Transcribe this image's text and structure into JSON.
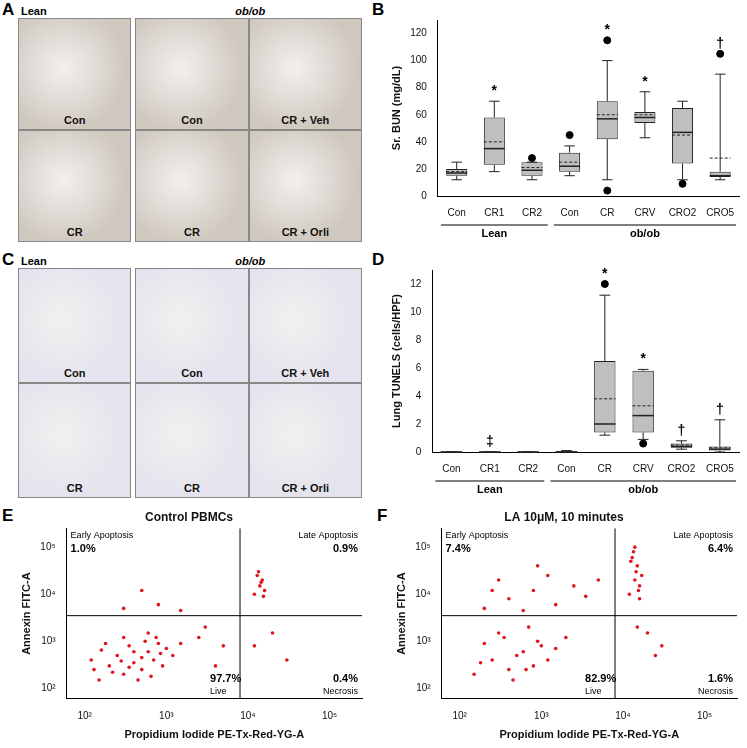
{
  "micrographs": [
    {
      "panel": "A",
      "color": "#cfc8bf",
      "groups": [
        {
          "label": "Lean",
          "cells": [
            "Con",
            "CR"
          ]
        },
        {
          "label": "ob/ob",
          "cells": [
            "Con",
            "CR + Veh",
            "CR",
            "CR + Orli"
          ]
        }
      ]
    },
    {
      "panel": "C",
      "color": "#e4e3ee",
      "groups": [
        {
          "label": "Lean",
          "cells": [
            "Con",
            "CR"
          ]
        },
        {
          "label": "ob/ob",
          "cells": [
            "Con",
            "CR + Veh",
            "CR",
            "CR + Orli"
          ]
        }
      ]
    }
  ],
  "chart_data": [
    {
      "panel": "B",
      "type": "box",
      "y_label": "Sr. BUN (mg/dL)",
      "color": "#bfbfbf",
      "grid": false,
      "categories": [
        "Con",
        "CR1",
        "CR2",
        "Con",
        "CR",
        "CRV",
        "CRO2",
        "CRO5"
      ],
      "groups": [
        {
          "label": "Lean",
          "count": 3
        },
        {
          "label": "ob/ob",
          "count": 5
        }
      ],
      "ylim": [
        0,
        130
      ],
      "yticks": [
        0,
        20,
        40,
        60,
        80,
        100,
        120
      ],
      "boxes": [
        {
          "min": 12,
          "q1": 15,
          "median": 17,
          "q3": 20,
          "max": 25,
          "mean": 18,
          "outliers": []
        },
        {
          "min": 18,
          "q1": 23,
          "median": 35,
          "q3": 58,
          "max": 70,
          "mean": 40,
          "outliers": []
        },
        {
          "min": 12,
          "q1": 15,
          "median": 19,
          "q3": 25,
          "max": 25,
          "mean": 21,
          "outliers": [
            28
          ]
        },
        {
          "min": 15,
          "q1": 18,
          "median": 22,
          "q3": 32,
          "max": 37,
          "mean": 25,
          "outliers": [
            45
          ]
        },
        {
          "min": 12,
          "q1": 42,
          "median": 57,
          "q3": 70,
          "max": 100,
          "mean": 60,
          "outliers": [
            115,
            4
          ]
        },
        {
          "min": 43,
          "q1": 54,
          "median": 58,
          "q3": 62,
          "max": 77,
          "mean": 60,
          "outliers": []
        },
        {
          "min": 12,
          "q1": 24,
          "median": 47,
          "q3": 65,
          "max": 70,
          "mean": 45,
          "outliers": [
            9
          ]
        },
        {
          "min": 12,
          "q1": 14,
          "median": 15,
          "q3": 18,
          "max": 90,
          "mean": 28,
          "outliers": [
            105
          ]
        }
      ],
      "annotations": [
        null,
        "*",
        null,
        null,
        "*",
        "*",
        null,
        "†"
      ]
    },
    {
      "panel": "D",
      "type": "box",
      "y_label": "Lung TUNELS (cells/HPF)",
      "color": "#bfbfbf",
      "grid": false,
      "categories": [
        "Con",
        "CR1",
        "CR2",
        "Con",
        "CR",
        "CRV",
        "CRO2",
        "CRO5"
      ],
      "groups": [
        {
          "label": "Lean",
          "count": 3
        },
        {
          "label": "ob/ob",
          "count": 5
        }
      ],
      "ylim": [
        0,
        13
      ],
      "yticks": [
        0,
        2,
        4,
        6,
        8,
        10,
        12
      ],
      "boxes": [
        {
          "min": 0,
          "q1": 0,
          "median": 0,
          "q3": 0,
          "max": 0,
          "mean": 0,
          "outliers": []
        },
        {
          "min": 0,
          "q1": 0,
          "median": 0,
          "q3": 0,
          "max": 0,
          "mean": 0,
          "outliers": []
        },
        {
          "min": 0,
          "q1": 0,
          "median": 0,
          "q3": 0,
          "max": 0,
          "mean": 0,
          "outliers": []
        },
        {
          "min": 0,
          "q1": 0,
          "median": 0,
          "q3": 0.05,
          "max": 0.1,
          "mean": 0.02,
          "outliers": []
        },
        {
          "min": 1.2,
          "q1": 1.4,
          "median": 2.0,
          "q3": 6.5,
          "max": 11.2,
          "mean": 3.8,
          "outliers": [
            12
          ]
        },
        {
          "min": 0.9,
          "q1": 1.4,
          "median": 2.6,
          "q3": 5.8,
          "max": 5.9,
          "mean": 3.3,
          "outliers": [
            0.6
          ]
        },
        {
          "min": 0.2,
          "q1": 0.3,
          "median": 0.4,
          "q3": 0.6,
          "max": 0.8,
          "mean": 0.5,
          "outliers": []
        },
        {
          "min": 0,
          "q1": 0.1,
          "median": 0.2,
          "q3": 0.4,
          "max": 2.3,
          "mean": 0.3,
          "outliers": []
        }
      ],
      "annotations": [
        null,
        "‡",
        null,
        null,
        "*",
        "*",
        "†",
        "†"
      ]
    },
    {
      "panel": "E",
      "type": "scatter",
      "title": "Control PBMCs",
      "color": "#e0141e",
      "grid": false,
      "log": true,
      "x_label": "Propidium Iodide PE-Tx-Red-YG-A",
      "y_label": "Annexin FITC-A",
      "xlim": [
        60,
        250000
      ],
      "ylim": [
        60,
        250000
      ],
      "xticks": [
        {
          "value": 100,
          "label": "10²"
        },
        {
          "value": 1000,
          "label": "10³"
        },
        {
          "value": 10000,
          "label": "10⁴"
        },
        {
          "value": 100000,
          "label": "10⁵"
        }
      ],
      "yticks": [
        {
          "value": 100,
          "label": "10²"
        },
        {
          "value": 1000,
          "label": "10³"
        },
        {
          "value": 10000,
          "label": "10⁴"
        },
        {
          "value": 100000,
          "label": "10⁵"
        }
      ],
      "gates": {
        "x": 8000,
        "y": 3500
      },
      "quadrants": [
        {
          "name": "Early Apoptosis",
          "label": "1.0%"
        },
        {
          "name": "Late Apoptosis",
          "label": "0.9%"
        },
        {
          "name": "Live",
          "label": "97.7%"
        },
        {
          "name": "Necrosis",
          "label": "0.4%"
        }
      ],
      "x": [
        150,
        200,
        300,
        250,
        400,
        500,
        350,
        600,
        180,
        700,
        450,
        120,
        800,
        300,
        550,
        900,
        220,
        650,
        1000,
        400,
        160,
        750,
        1200,
        280,
        500,
        130,
        850,
        350,
        1500,
        600,
        300,
        800,
        1500,
        500,
        12000,
        14000,
        15000,
        13000,
        16000,
        14500,
        13500,
        15500,
        12000,
        20000,
        30000,
        3000,
        5000,
        2500,
        4000
      ],
      "values": [
        150,
        300,
        200,
        500,
        350,
        250,
        800,
        600,
        900,
        400,
        150,
        400,
        900,
        1200,
        1000,
        300,
        220,
        180,
        700,
        600,
        650,
        1200,
        500,
        380,
        450,
        250,
        550,
        280,
        900,
        1500,
        5000,
        6000,
        4500,
        12000,
        10000,
        15000,
        20000,
        25000,
        12000,
        18000,
        30000,
        9000,
        800,
        1500,
        400,
        2000,
        800,
        1200,
        300
      ]
    },
    {
      "panel": "F",
      "type": "scatter",
      "title": "LA 10μM, 10 minutes",
      "color": "#e0141e",
      "grid": false,
      "log": true,
      "x_label": "Propidium Iodide PE-Tx-Red-YG-A",
      "y_label": "Annexin FITC-A",
      "xlim": [
        60,
        250000
      ],
      "ylim": [
        60,
        250000
      ],
      "xticks": [
        {
          "value": 100,
          "label": "10²"
        },
        {
          "value": 1000,
          "label": "10³"
        },
        {
          "value": 10000,
          "label": "10⁴"
        },
        {
          "value": 100000,
          "label": "10⁵"
        }
      ],
      "yticks": [
        {
          "value": 100,
          "label": "10²"
        },
        {
          "value": 1000,
          "label": "10³"
        },
        {
          "value": 10000,
          "label": "10⁴"
        },
        {
          "value": 100000,
          "label": "10⁵"
        }
      ],
      "gates": {
        "x": 8000,
        "y": 3500
      },
      "quadrants": [
        {
          "name": "Early Apoptosis",
          "label": "7.4%"
        },
        {
          "name": "Late Apoptosis",
          "label": "6.4%"
        },
        {
          "name": "Live",
          "label": "82.9%"
        },
        {
          "name": "Necrosis",
          "label": "1.6%"
        }
      ],
      "x": [
        150,
        250,
        400,
        600,
        200,
        800,
        350,
        1000,
        500,
        300,
        1500,
        700,
        180,
        900,
        450,
        1200,
        2000,
        650,
        200,
        400,
        800,
        1500,
        300,
        2500,
        600,
        1200,
        3500,
        5000,
        250,
        900,
        12000,
        14000,
        15000,
        13000,
        16000,
        14500,
        13500,
        15500,
        17000,
        12500,
        14000,
        16000,
        20000,
        30000,
        15000,
        25000
      ],
      "values": [
        200,
        400,
        250,
        600,
        900,
        300,
        1200,
        800,
        500,
        1500,
        700,
        2000,
        350,
        1000,
        150,
        400,
        1200,
        250,
        5000,
        8000,
        12000,
        6000,
        20000,
        15000,
        4500,
        25000,
        9000,
        20000,
        12000,
        40000,
        10000,
        20000,
        40000,
        60000,
        15000,
        30000,
        80000,
        12000,
        25000,
        50000,
        100000,
        8000,
        1500,
        800,
        2000,
        500
      ]
    }
  ]
}
